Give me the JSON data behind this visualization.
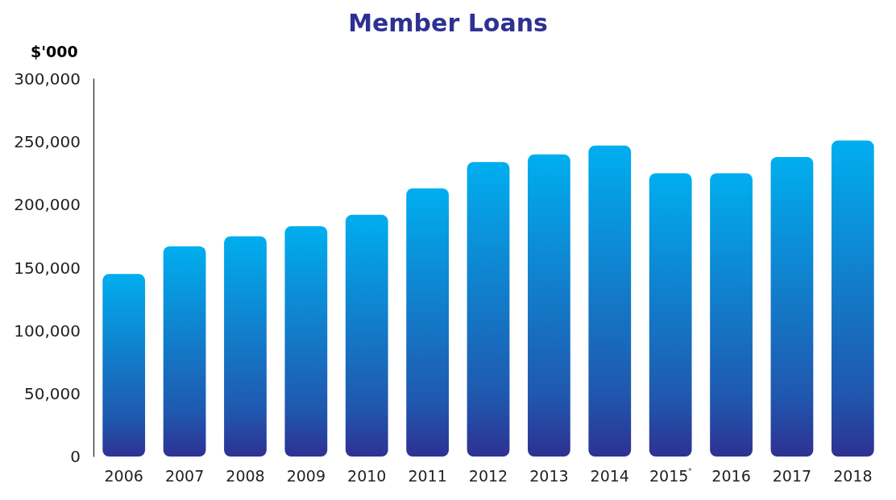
{
  "chart_data": {
    "type": "bar",
    "title": "Member Loans",
    "ylabel": "$'000",
    "categories": [
      "2006",
      "2007",
      "2008",
      "2009",
      "2010",
      "2011",
      "2012",
      "2013",
      "2014",
      "2015$^{*}$",
      "2016",
      "2017",
      "2018"
    ],
    "values": [
      145000,
      167000,
      175000,
      183000,
      192000,
      213000,
      234000,
      240000,
      247000,
      225000,
      225000,
      238000,
      251000
    ],
    "color": "#00aeef",
    "ylim": [
      0,
      300000
    ],
    "yticks": [
      0,
      {
        "value": 50000,
        "label": "50,000"
      },
      {
        "value": 100000,
        "label": "100,000"
      },
      {
        "value": 150000,
        "label": "150,000"
      },
      {
        "value": 200000,
        "label": "200,000"
      },
      {
        "value": 250000,
        "label": "250,000"
      },
      {
        "value": 300000,
        "label": "300,000"
      }
    ],
    "grid": false
  }
}
